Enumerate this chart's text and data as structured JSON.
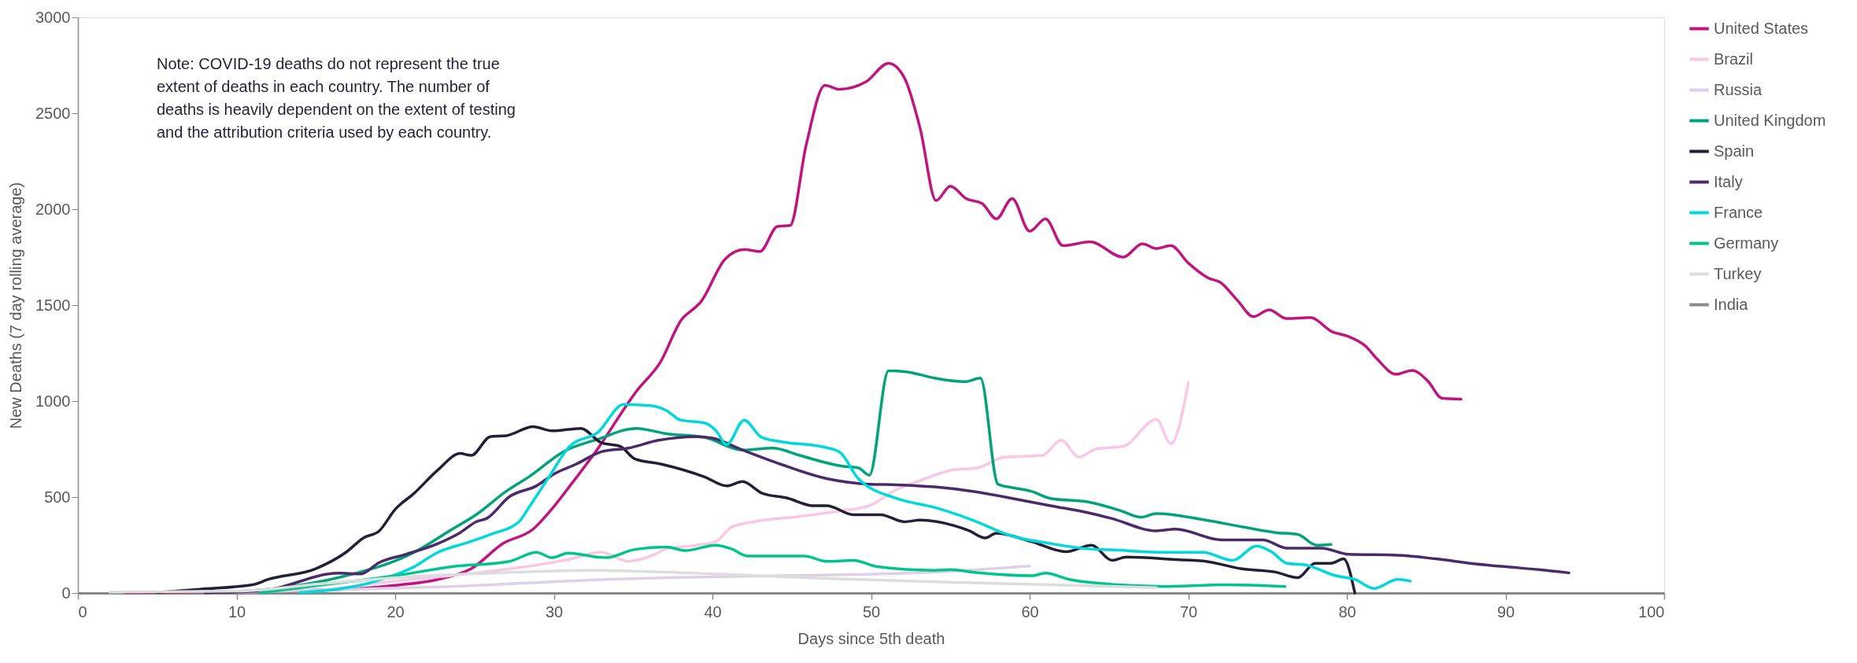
{
  "chart_data": {
    "type": "line",
    "xlabel": "Days since 5th death",
    "ylabel": "New Deaths (7 day rolling average)",
    "xlim": [
      0,
      100
    ],
    "xticks": [
      0,
      10,
      20,
      30,
      40,
      50,
      60,
      70,
      80,
      90,
      100
    ],
    "ylim": [
      0,
      3000
    ],
    "yticks": [
      0,
      500,
      1000,
      1500,
      2000,
      2500,
      3000
    ],
    "grid": false,
    "legend": "right",
    "marker": "none",
    "line_style": "solid",
    "annotations": [
      "Note: COVID-19 deaths do not represent the true extent of deaths in each country. The number of deaths is heavily dependent on the extent of testing and the attribution criteria used by each country."
    ],
    "series": [
      {
        "name": "United States",
        "color": "#c0147f",
        "x": [
          3,
          10,
          15,
          17.8,
          20,
          22.7,
          24.8,
          26.8,
          28.7,
          29.9,
          31.1,
          32.8,
          34.6,
          35.2,
          36.7,
          38.1,
          38.8,
          39.2,
          40.8,
          42,
          43,
          44.1,
          44.9,
          45.9,
          47.1,
          48,
          49.7,
          51.1,
          52.1,
          53.1,
          54.1,
          55,
          56,
          57,
          57.9,
          58.9,
          60,
          61,
          62.1,
          63.8,
          65.9,
          67.1,
          68,
          68.9,
          70,
          71.3,
          72,
          73.1,
          74.1,
          75.1,
          76.2,
          77.7,
          79.1,
          80,
          81.2,
          81.9,
          83.1,
          84.1,
          85.1,
          86,
          87.2
        ],
        "values": [
          2,
          8,
          15,
          24,
          40,
          71,
          127,
          258,
          333,
          440,
          567,
          755,
          980,
          1050,
          1200,
          1430,
          1480,
          1510,
          1740,
          1790,
          1780,
          1910,
          1915,
          2330,
          2645,
          2625,
          2665,
          2760,
          2685,
          2420,
          2045,
          2120,
          2055,
          2030,
          1950,
          2055,
          1885,
          1950,
          1810,
          1830,
          1750,
          1820,
          1795,
          1810,
          1720,
          1640,
          1620,
          1525,
          1440,
          1475,
          1430,
          1435,
          1360,
          1340,
          1285,
          1220,
          1140,
          1160,
          1105,
          1015,
          1010
        ]
      },
      {
        "name": "Brazil",
        "color": "#f8c8e4",
        "x": [
          15,
          20,
          25,
          28.5,
          30.9,
          33,
          34.7,
          36.4,
          37.1,
          39,
          40.2,
          41.2,
          42.6,
          45.5,
          48,
          49.9,
          51.6,
          53.1,
          55.2,
          56.7,
          58.4,
          60.8,
          62,
          63.1,
          64.2,
          65.9,
          68,
          68.9,
          70
        ],
        "values": [
          10,
          62,
          103,
          140,
          174,
          212,
          165,
          202,
          230,
          249,
          268,
          343,
          371,
          399,
          427,
          455,
          539,
          586,
          642,
          652,
          708,
          717,
          796,
          708,
          751,
          764,
          905,
          777,
          1096
        ]
      },
      {
        "name": "Russia",
        "color": "#ddd0e8",
        "x": [
          10,
          15,
          23.6,
          33.3,
          37.3,
          44.3,
          54,
          60
        ],
        "values": [
          3,
          15,
          34,
          71,
          80,
          90,
          109,
          140
        ]
      },
      {
        "name": "United Kingdom",
        "color": "#00a37a",
        "x": [
          8,
          12,
          16.4,
          21.2,
          23.6,
          25.1,
          27,
          28.5,
          30.6,
          32.8,
          35.2,
          37.1,
          39.5,
          41.9,
          43.8,
          45.5,
          48.2,
          49.2,
          49.9,
          51.1,
          52.3,
          54,
          55.9,
          56.9,
          58,
          58.9,
          60.1,
          61.3,
          63.7,
          65.8,
          67,
          68,
          71.1,
          73.5,
          75.5,
          76.9,
          78.1,
          79
        ],
        "values": [
          2,
          20,
          80,
          212,
          333,
          408,
          530,
          609,
          736,
          802,
          858,
          830,
          811,
          745,
          755,
          717,
          661,
          652,
          614,
          1158,
          1152,
          1120,
          1101,
          1120,
          567,
          549,
          530,
          493,
          474,
          427,
          395,
          414,
          380,
          343,
          315,
          305,
          249,
          253
        ]
      },
      {
        "name": "Spain",
        "color": "#231f36",
        "x": [
          5,
          7.7,
          11,
          12,
          15,
          16.9,
          18,
          19,
          20,
          21.2,
          22.7,
          24.1,
          24.8,
          26,
          27,
          28.7,
          29.9,
          31.7,
          33,
          34.2,
          35.1,
          36.8,
          39.5,
          40.9,
          41.9,
          43.1,
          44.8,
          46.3,
          47.2,
          48.9,
          50.6,
          52.1,
          53.1,
          55.2,
          56.2,
          57.2,
          57.9,
          60.1,
          62.3,
          63.9,
          65.2,
          66.1,
          69.2,
          71.1,
          73.3,
          75.5,
          76.9,
          78,
          79,
          79.8,
          80.5
        ],
        "values": [
          3,
          20,
          43,
          71,
          127,
          212,
          287,
          324,
          436,
          520,
          642,
          727,
          717,
          815,
          820,
          867,
          845,
          858,
          783,
          764,
          699,
          671,
          605,
          558,
          581,
          521,
          493,
          455,
          455,
          408,
          408,
          371,
          380,
          352,
          324,
          287,
          311,
          268,
          215,
          249,
          170,
          187,
          174,
          165,
          127,
          109,
          80,
          155,
          155,
          178,
          0
        ]
      },
      {
        "name": "Italy",
        "color": "#4a2a6a",
        "x": [
          8,
          11.5,
          16.4,
          17.8,
          19,
          20.7,
          22.7,
          24.1,
          25.1,
          25.8,
          27.2,
          28.9,
          30.1,
          31.4,
          33,
          34.7,
          36.6,
          39,
          40,
          41.9,
          44.3,
          47.2,
          49.9,
          51.6,
          54,
          56.4,
          58.9,
          61.3,
          63.7,
          65.1,
          68,
          69.2,
          72.1,
          74.7,
          76.2,
          78.4,
          80.1,
          83.2,
          85.6,
          88.1,
          90,
          92.1,
          94
        ],
        "values": [
          2,
          10,
          103,
          99,
          159,
          202,
          258,
          315,
          371,
          390,
          502,
          558,
          624,
          671,
          736,
          755,
          796,
          815,
          807,
          745,
          671,
          596,
          567,
          564,
          553,
          530,
          493,
          455,
          418,
          390,
          324,
          333,
          277,
          277,
          234,
          234,
          202,
          197,
          178,
          152,
          137,
          122,
          105
        ]
      },
      {
        "name": "France",
        "color": "#00d9db",
        "x": [
          14,
          18.8,
          21.2,
          22.7,
          24.6,
          26,
          27.8,
          28.5,
          29.7,
          31,
          32.8,
          34.4,
          36.1,
          37.1,
          38,
          39.5,
          40.2,
          40.9,
          42,
          43.1,
          44.8,
          46.8,
          48,
          49.2,
          51.6,
          54,
          56.4,
          58.9,
          61.3,
          63.7,
          65.1,
          68.7,
          70.9,
          72.8,
          74.3,
          75.3,
          76.2,
          77.4,
          79.3,
          80.5,
          81.7,
          83.2,
          84
        ],
        "values": [
          2,
          62,
          137,
          212,
          264,
          305,
          371,
          455,
          605,
          764,
          839,
          983,
          976,
          951,
          901,
          886,
          848,
          774,
          901,
          811,
          783,
          764,
          736,
          596,
          493,
          446,
          380,
          296,
          258,
          230,
          225,
          212,
          212,
          170,
          245,
          212,
          155,
          146,
          90,
          71,
          24,
          71,
          62
        ]
      },
      {
        "name": "Germany",
        "color": "#00c48c",
        "x": [
          11.5,
          16.4,
          20,
          23.6,
          27.2,
          28.9,
          29.9,
          30.9,
          33.3,
          35.1,
          37.1,
          38.3,
          40.2,
          41.2,
          42.2,
          44.3,
          45.8,
          47.2,
          48.9,
          50.4,
          54,
          55,
          56.4,
          60.1,
          61,
          62.5,
          64.2,
          68.7,
          72.3,
          76.1
        ],
        "values": [
          2,
          52,
          90,
          137,
          165,
          212,
          184,
          208,
          184,
          227,
          240,
          221,
          249,
          230,
          193,
          193,
          193,
          165,
          170,
          137,
          118,
          122,
          109,
          90,
          103,
          71,
          52,
          34,
          43,
          34
        ]
      },
      {
        "name": "Turkey",
        "color": "#dcdedd",
        "x": [
          2,
          10,
          15.2,
          20,
          26,
          32.1,
          37,
          46.8,
          54,
          61.3,
          68
        ],
        "values": [
          5,
          10,
          47,
          80,
          103,
          118,
          109,
          77,
          58,
          43,
          28
        ]
      },
      {
        "name": "India",
        "color": "#8a8a8a"
      }
    ]
  }
}
